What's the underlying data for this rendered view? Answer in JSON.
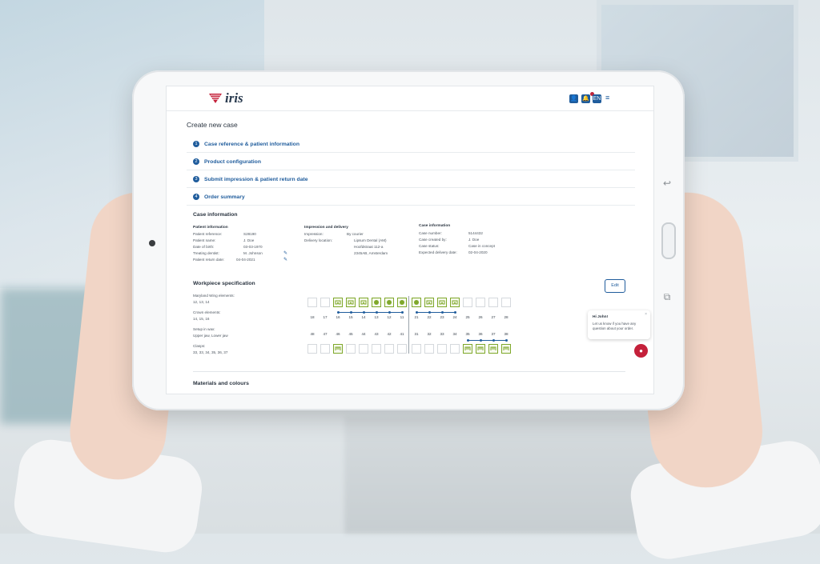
{
  "header": {
    "logo_text": "iris",
    "icons": [
      "user-icon",
      "notification-icon",
      "language-icon",
      "menu-icon"
    ],
    "language_label": "EN"
  },
  "page_title": "Create new case",
  "steps": [
    {
      "num": "1",
      "label": "Case reference & patient information"
    },
    {
      "num": "2",
      "label": "Product configuration"
    },
    {
      "num": "3",
      "label": "Submit impression & patient return date"
    },
    {
      "num": "4",
      "label": "Order summary"
    }
  ],
  "case_info": {
    "title": "Case information",
    "patient": {
      "title": "Patient information",
      "rows": [
        {
          "k": "Patient reference:",
          "v": "S28190"
        },
        {
          "k": "Patient name:",
          "v": "J. Doe"
        },
        {
          "k": "Date of birth:",
          "v": "03-03-1970"
        },
        {
          "k": "Treating dentist:",
          "v": "M. Johnson"
        },
        {
          "k": "Patient return date:",
          "v": "04-04-2021"
        }
      ]
    },
    "delivery": {
      "title": "Impression and delivery",
      "rows": [
        {
          "k": "Impression:",
          "v": "By courier"
        },
        {
          "k": "Delivery location:",
          "v": "Lipsum Dental (AM)"
        },
        {
          "k": "",
          "v": "Hoofdstraat 112-a"
        },
        {
          "k": "",
          "v": "2345AB, Amsterdam"
        }
      ]
    },
    "case": {
      "title": "Case information",
      "rows": [
        {
          "k": "Case number:",
          "v": "5144432"
        },
        {
          "k": "Case created by:",
          "v": "J. Doe"
        },
        {
          "k": "Case status:",
          "v": "Case in concept"
        },
        {
          "k": "Expected delivery date:",
          "v": "02-04-2020"
        }
      ]
    }
  },
  "workpiece": {
    "title": "Workpiece specification",
    "edit_label": "Edit",
    "specs": [
      {
        "label": "Maryland Wing elements:",
        "value": "12, 13, 14"
      },
      {
        "label": "Crown elements:",
        "value": "14, 15, 16"
      },
      {
        "label": "Setup in wax:",
        "value": "Upper jaw, Lower jaw"
      },
      {
        "label": "Clasps:",
        "value": "33, 33, 34, 35, 36, 37"
      }
    ],
    "upper_numbers": [
      "18",
      "17",
      "16",
      "15",
      "14",
      "13",
      "12",
      "11",
      "21",
      "22",
      "23",
      "24",
      "25",
      "26",
      "27",
      "28"
    ],
    "lower_numbers": [
      "48",
      "47",
      "46",
      "45",
      "44",
      "43",
      "42",
      "41",
      "31",
      "32",
      "33",
      "34",
      "35",
      "36",
      "37",
      "38"
    ]
  },
  "materials_title": "Materials and colours",
  "chat": {
    "greeting": "Hi John!",
    "body": "Let us know if you have any question about your order."
  }
}
